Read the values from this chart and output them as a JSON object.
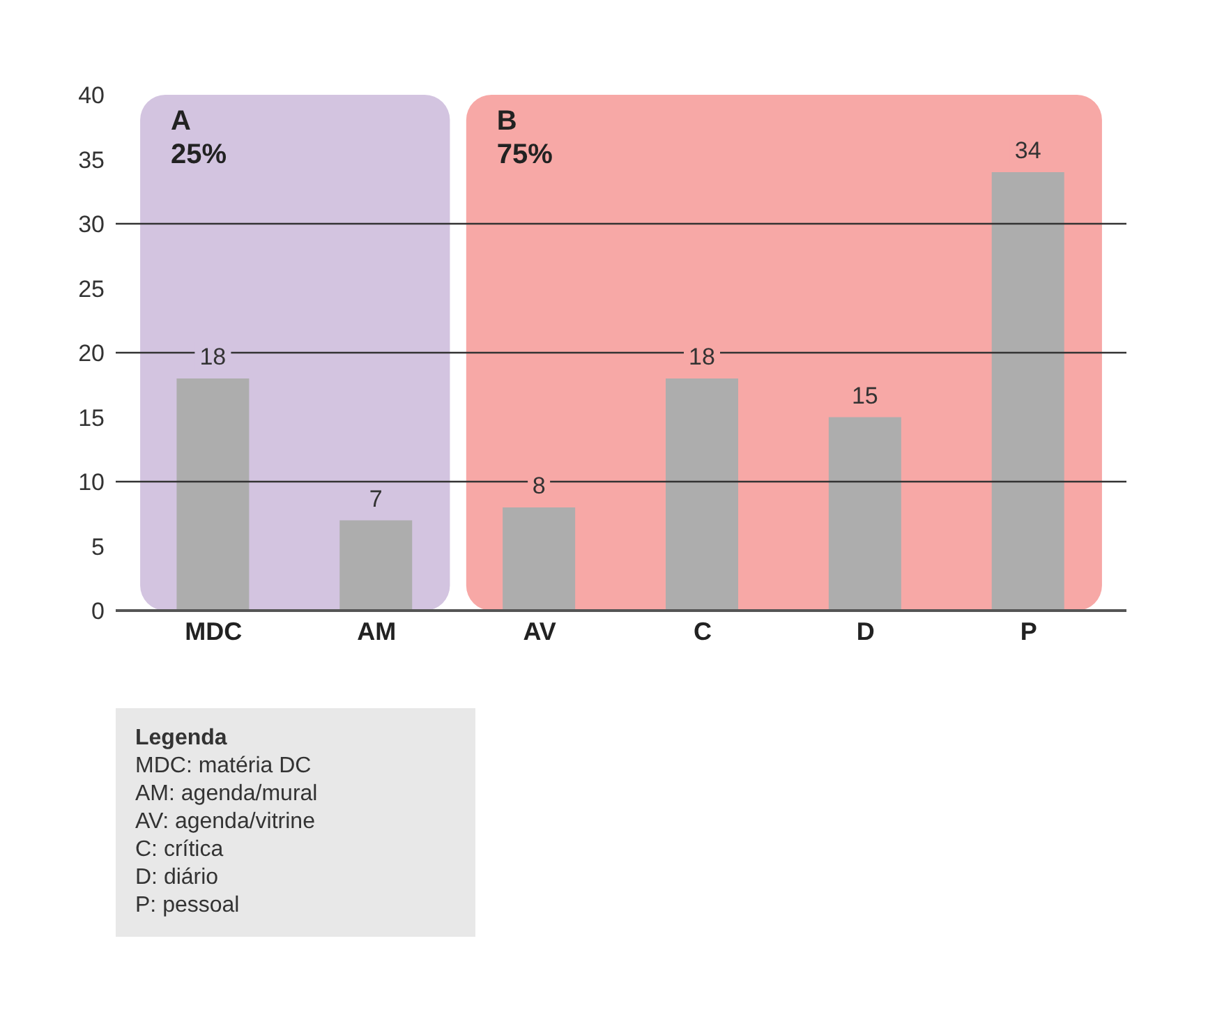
{
  "chart_data": {
    "type": "bar",
    "categories": [
      "MDC",
      "AM",
      "AV",
      "C",
      "D",
      "P"
    ],
    "values": [
      18,
      7,
      8,
      18,
      15,
      34
    ],
    "color": "#adadad",
    "data_labels": true,
    "ylim": [
      0,
      40
    ],
    "yticks": [
      0,
      5,
      10,
      15,
      20,
      25,
      30,
      35,
      40
    ],
    "bands": [
      {
        "axis": "x",
        "from": "MDC",
        "to": "AM",
        "label": "A 25%",
        "color": "#d3c4e0"
      },
      {
        "axis": "x",
        "from": "AV",
        "to": "P",
        "label": "B 75%",
        "color": "#f7a8a6"
      }
    ],
    "ref_lines": [
      {
        "axis": "y",
        "value": 10,
        "color": "#333333"
      },
      {
        "axis": "y",
        "value": 20,
        "color": "#333333"
      },
      {
        "axis": "y",
        "value": 30,
        "color": "#333333"
      }
    ],
    "annotations": [
      "Legenda",
      "MDC: matéria DC",
      "AM: agenda/mural",
      "AV: agenda/vitrine",
      "C: crítica",
      "D: diário",
      "P: pessoal"
    ]
  }
}
